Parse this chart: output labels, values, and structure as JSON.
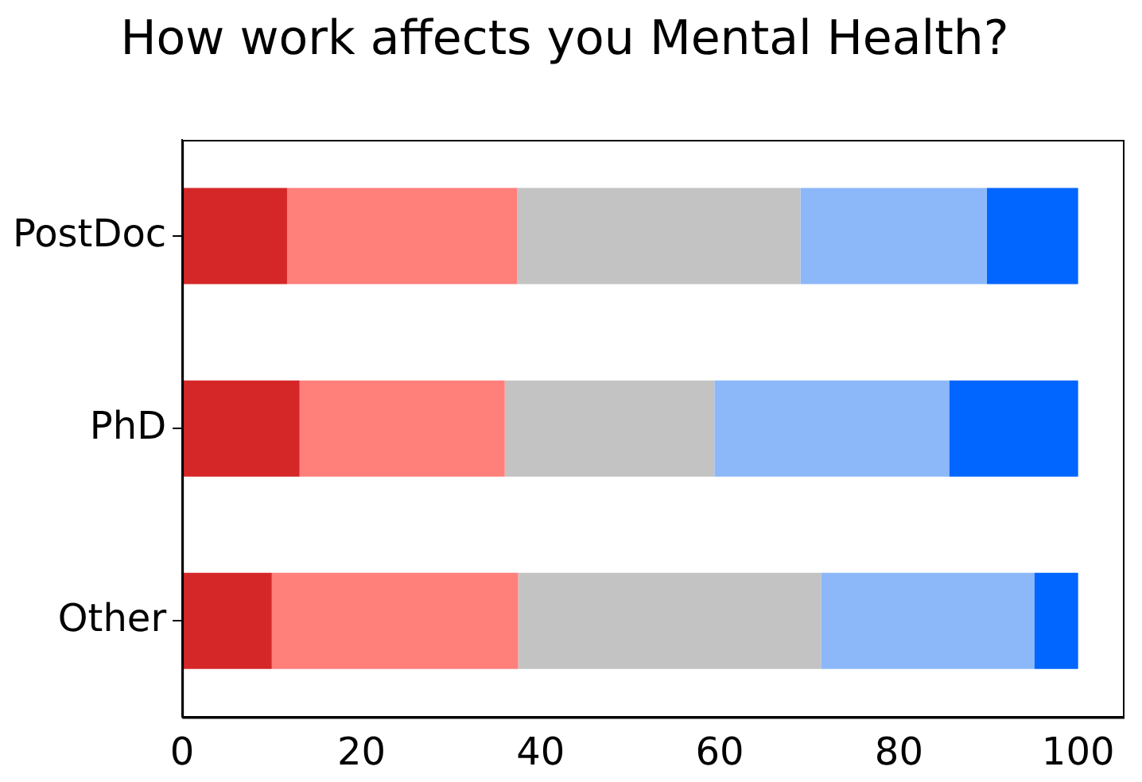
{
  "chart_data": {
    "type": "bar",
    "orientation": "horizontal",
    "stacked": true,
    "title": "How work affects you Mental Health?",
    "categories": [
      "PostDoc",
      "PhD",
      "Other"
    ],
    "series": [
      {
        "color": "#d62728",
        "values": [
          11.7,
          13.1,
          10.0
        ]
      },
      {
        "color": "#ff7f7b",
        "values": [
          25.7,
          22.9,
          27.5
        ]
      },
      {
        "color": "#c3c3c3",
        "values": [
          31.6,
          23.4,
          33.8
        ]
      },
      {
        "color": "#8cb8fa",
        "values": [
          20.8,
          26.2,
          23.8
        ]
      },
      {
        "color": "#0066ff",
        "values": [
          10.2,
          14.4,
          4.9
        ]
      }
    ],
    "xlim": [
      0,
      105
    ],
    "xticks": [
      0,
      20,
      40,
      60,
      80,
      100
    ],
    "grid": false,
    "legend": false
  }
}
